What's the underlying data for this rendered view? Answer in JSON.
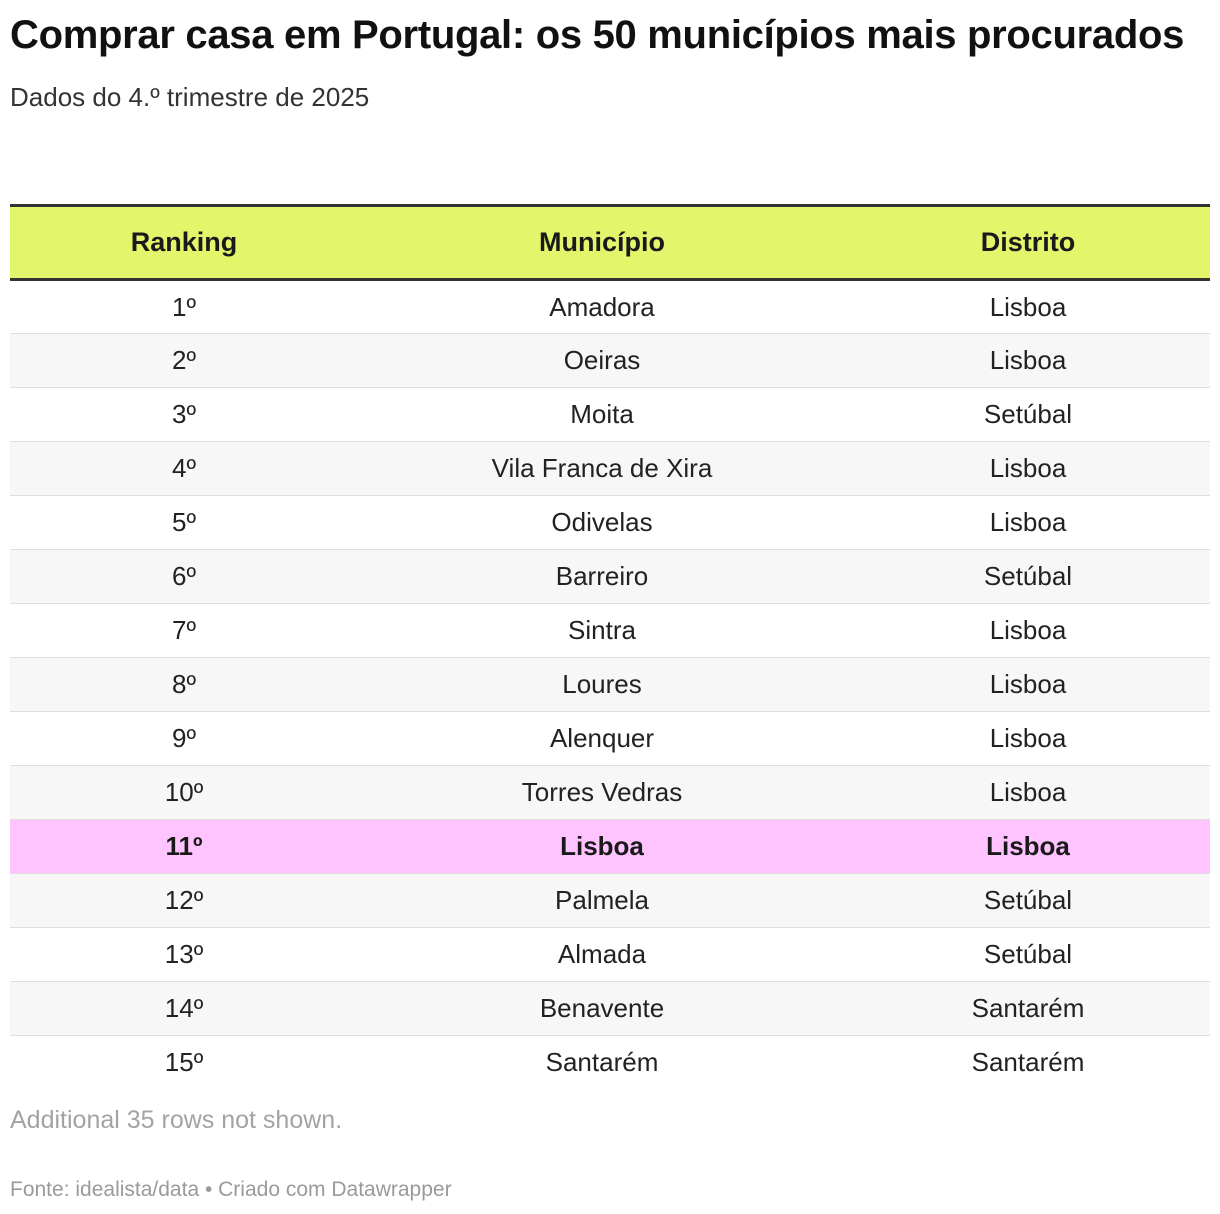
{
  "header": {
    "title": "Comprar casa em Portugal: os 50 municípios mais procurados",
    "subtitle": "Dados do 4.º trimestre de 2025"
  },
  "chart_data": {
    "type": "table",
    "columns": [
      "Ranking",
      "Município",
      "Distrito"
    ],
    "rows": [
      {
        "rank": "1º",
        "municipio": "Amadora",
        "distrito": "Lisboa"
      },
      {
        "rank": "2º",
        "municipio": "Oeiras",
        "distrito": "Lisboa"
      },
      {
        "rank": "3º",
        "municipio": "Moita",
        "distrito": "Setúbal"
      },
      {
        "rank": "4º",
        "municipio": "Vila Franca de Xira",
        "distrito": "Lisboa"
      },
      {
        "rank": "5º",
        "municipio": "Odivelas",
        "distrito": "Lisboa"
      },
      {
        "rank": "6º",
        "municipio": "Barreiro",
        "distrito": "Setúbal"
      },
      {
        "rank": "7º",
        "municipio": "Sintra",
        "distrito": "Lisboa"
      },
      {
        "rank": "8º",
        "municipio": "Loures",
        "distrito": "Lisboa"
      },
      {
        "rank": "9º",
        "municipio": "Alenquer",
        "distrito": "Lisboa"
      },
      {
        "rank": "10º",
        "municipio": "Torres Vedras",
        "distrito": "Lisboa"
      },
      {
        "rank": "11º",
        "municipio": "Lisboa",
        "distrito": "Lisboa",
        "highlight": true
      },
      {
        "rank": "12º",
        "municipio": "Palmela",
        "distrito": "Setúbal"
      },
      {
        "rank": "13º",
        "municipio": "Almada",
        "distrito": "Setúbal"
      },
      {
        "rank": "14º",
        "municipio": "Benavente",
        "distrito": "Santarém"
      },
      {
        "rank": "15º",
        "municipio": "Santarém",
        "distrito": "Santarém"
      }
    ],
    "highlight_color": "#ffc3ff",
    "header_color": "#e2f56b"
  },
  "notes": "Additional 35 rows not shown.",
  "footer": "Fonte: idealista/data • Criado com Datawrapper"
}
